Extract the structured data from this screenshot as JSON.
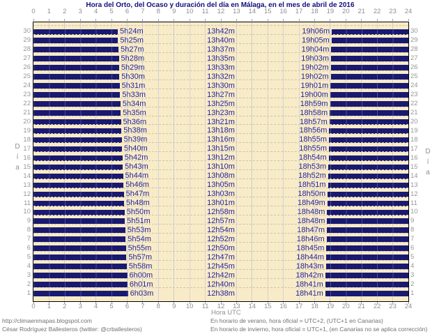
{
  "footer": {
    "left_line1": "http://climaenmapas.blogspot.com",
    "left_line2": "César Rodríguez Ballesteros (twitter: @crballesteros)",
    "right_line1": "En horario de verano, hora oficial = UTC+2, (UTC+1 en Canarias)",
    "right_line2": "En horario de invierno, hora oficial = UTC+1, (en Canarias no se aplica corrección)"
  },
  "colors": {
    "plot_background": "#F8EBC7",
    "night_bar": "#191970",
    "time_label_text": "#22229B",
    "title_text": "#10107D",
    "axis_text": "#8F8F8F",
    "grid_line": "#CBCBCB",
    "footer_text": "#707070",
    "plot_border": "#000000"
  },
  "chart_data": {
    "type": "bar",
    "subtype": "horizontal-day-night-span",
    "title": "Hora del Orto, del Ocaso y duración del día en Málaga, en el mes de abril de 2016",
    "xlabel": "Hora UTC",
    "ylabel": "Día",
    "xlim": [
      0,
      24
    ],
    "x_ticks": [
      0,
      1,
      2,
      3,
      4,
      5,
      6,
      7,
      8,
      9,
      10,
      11,
      12,
      13,
      14,
      15,
      16,
      17,
      18,
      19,
      20,
      21,
      22,
      23,
      24
    ],
    "days": [
      1,
      2,
      3,
      4,
      5,
      6,
      7,
      8,
      9,
      10,
      11,
      12,
      13,
      14,
      15,
      16,
      17,
      18,
      19,
      20,
      21,
      22,
      23,
      24,
      25,
      26,
      27,
      28,
      29,
      30
    ],
    "grid": true,
    "legend": false,
    "series": [
      {
        "name": "orto",
        "values": [
          "6h03m",
          "6h01m",
          "6h00m",
          "5h58m",
          "5h57m",
          "5h55m",
          "5h54m",
          "5h53m",
          "5h51m",
          "5h50m",
          "5h48m",
          "5h47m",
          "5h46m",
          "5h44m",
          "5h43m",
          "5h42m",
          "5h40m",
          "5h39m",
          "5h38m",
          "5h36m",
          "5h35m",
          "5h34m",
          "5h33m",
          "5h31m",
          "5h30m",
          "5h29m",
          "5h28m",
          "5h27m",
          "5h25m",
          "5h24m"
        ]
      },
      {
        "name": "duración",
        "values": [
          "12h38m",
          "12h40m",
          "12h42m",
          "12h45m",
          "12h47m",
          "12h50m",
          "12h52m",
          "12h54m",
          "12h57m",
          "12h58m",
          "13h01m",
          "13h03m",
          "13h05m",
          "13h08m",
          "13h10m",
          "13h12m",
          "13h15m",
          "13h16m",
          "13h18m",
          "13h21m",
          "13h23m",
          "13h25m",
          "13h27m",
          "13h30m",
          "13h32m",
          "13h33m",
          "13h35m",
          "13h37m",
          "13h40m",
          "13h42m"
        ]
      },
      {
        "name": "ocaso",
        "values": [
          "18h41m",
          "18h41m",
          "18h42m",
          "18h43m",
          "18h44m",
          "18h45m",
          "18h46m",
          "18h47m",
          "18h48m",
          "18h48m",
          "18h49m",
          "18h50m",
          "18h51m",
          "18h52m",
          "18h53m",
          "18h54m",
          "18h55m",
          "18h55m",
          "18h56m",
          "18h57m",
          "18h58m",
          "18h59m",
          "19h00m",
          "19h01m",
          "19h02m",
          "19h02m",
          "19h03m",
          "19h04m",
          "19h05m",
          "19h06m"
        ]
      }
    ]
  }
}
